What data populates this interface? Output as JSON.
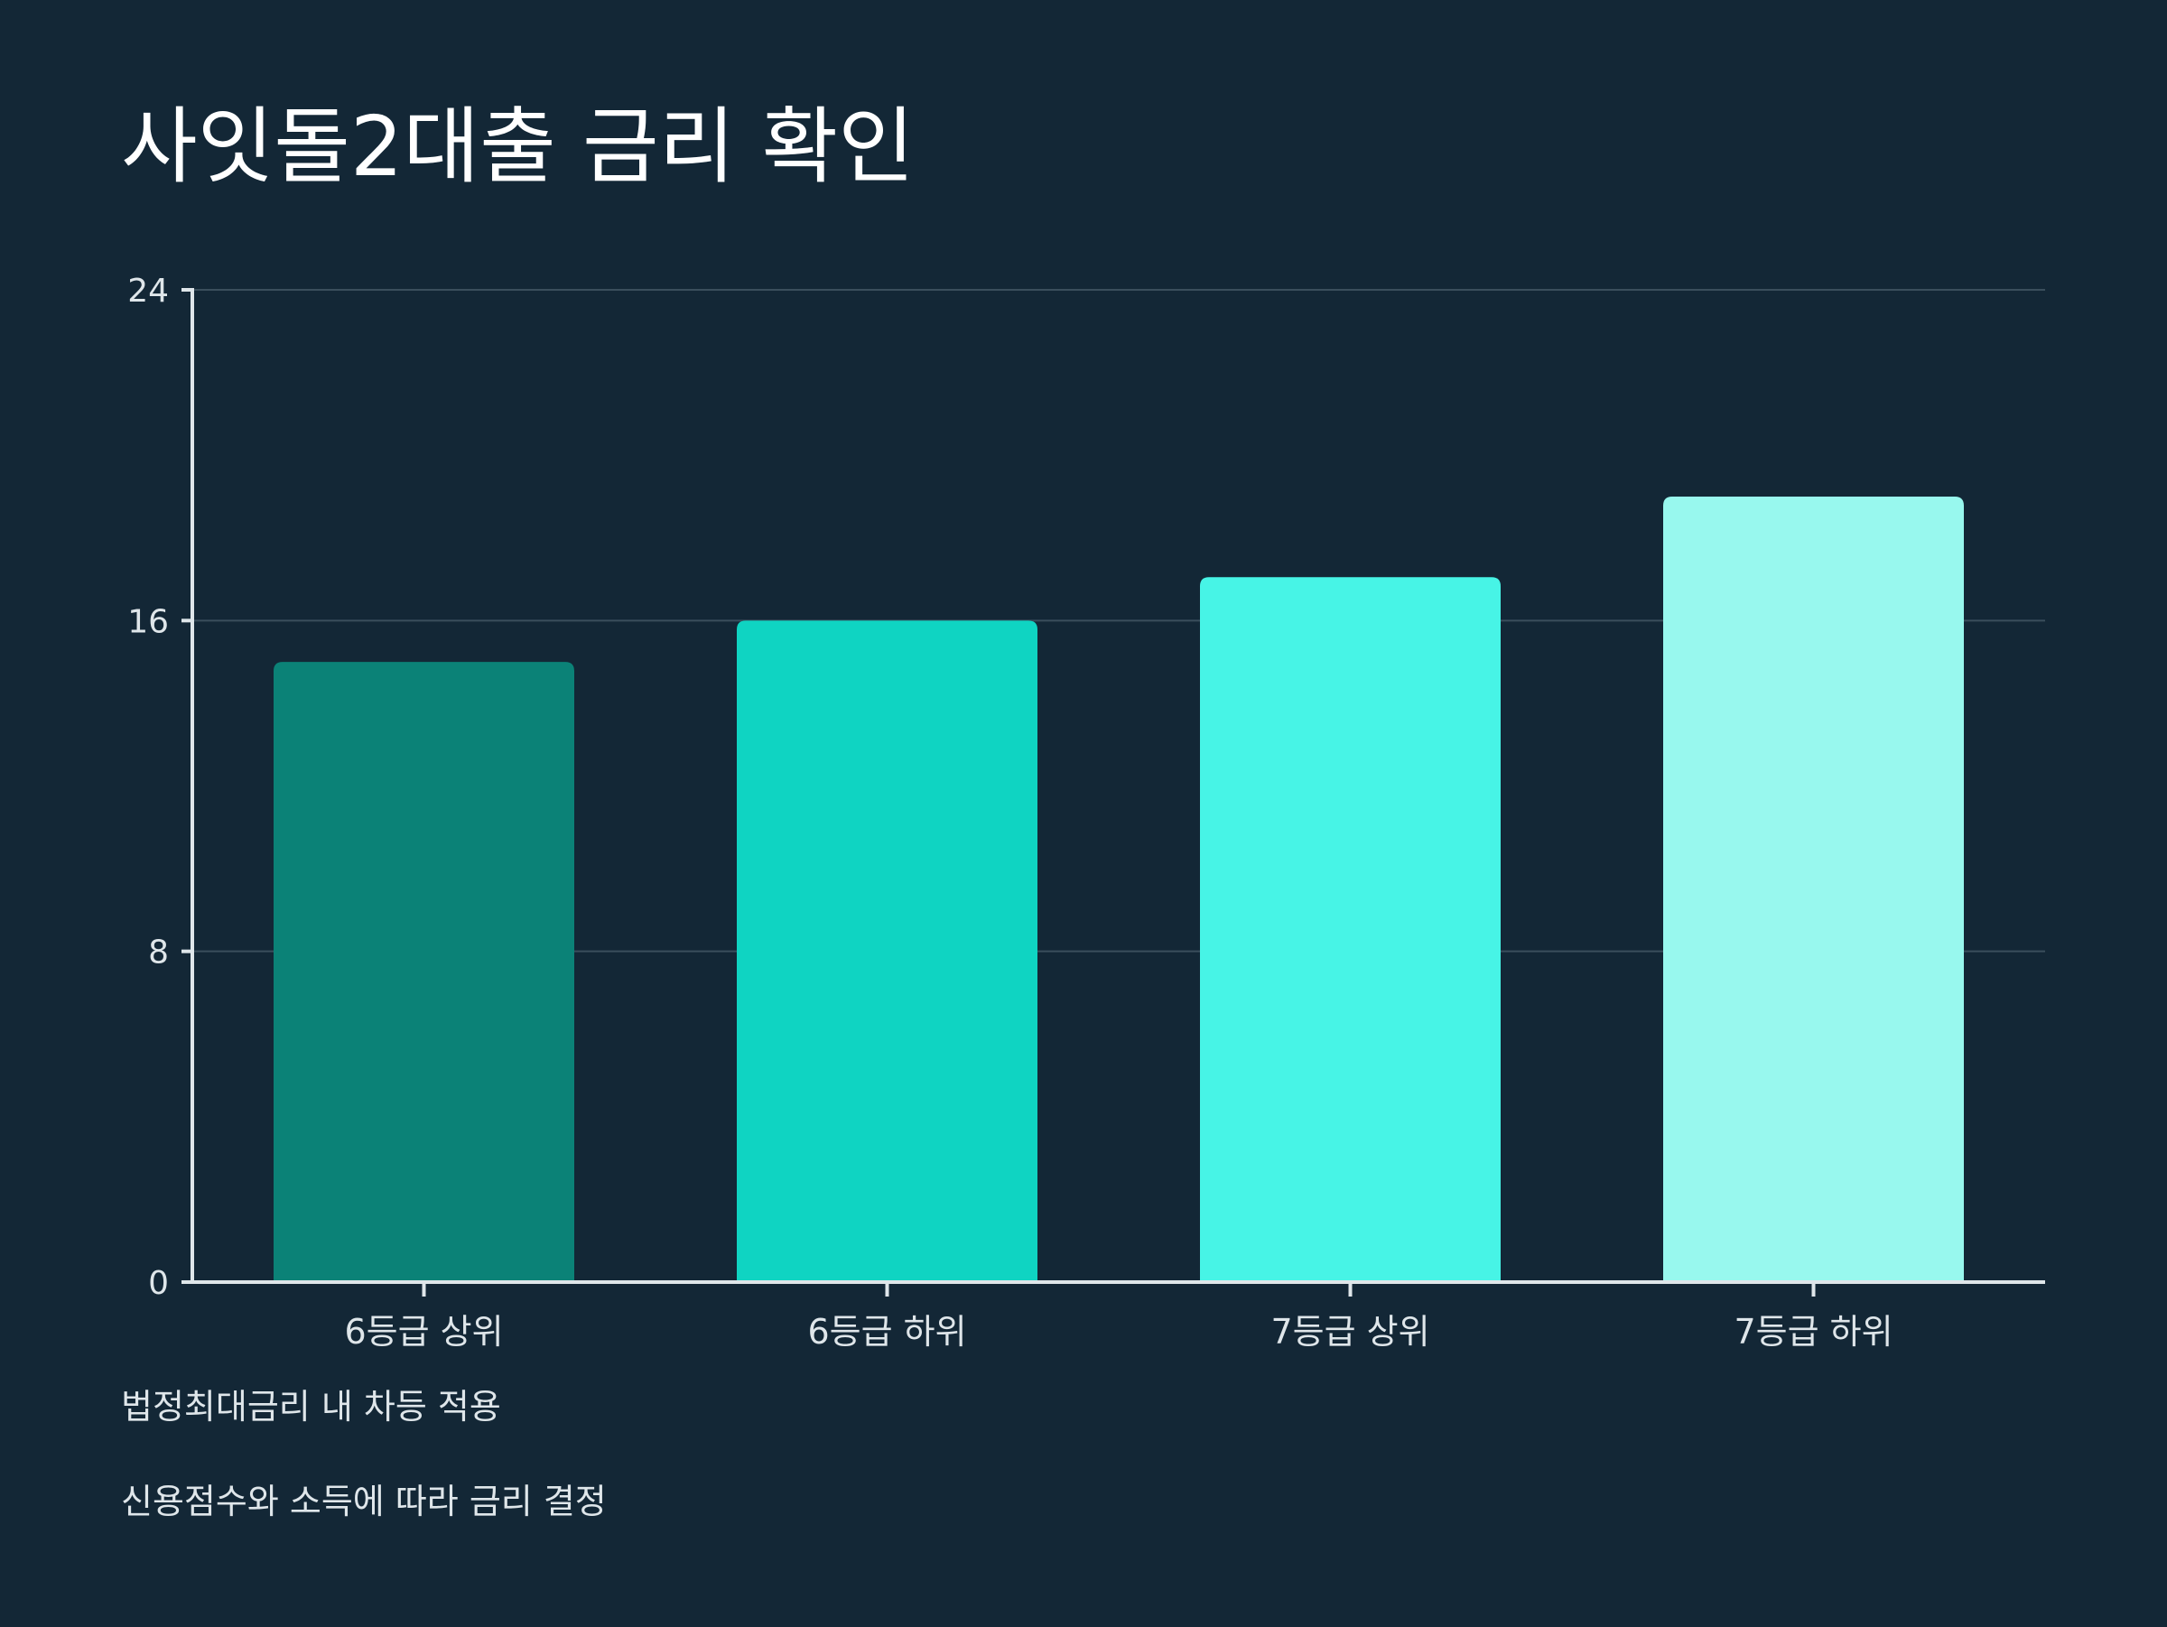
{
  "title": "사잇돌2대출 금리 확인",
  "chart_data": {
    "type": "bar",
    "title": "사잇돌2대출 금리 확인",
    "categories": [
      "6등급 상위",
      "6등급 하위",
      "7등급 상위",
      "7등급 하위"
    ],
    "values": [
      15,
      16,
      17.05,
      19
    ],
    "ylim": [
      0,
      24
    ],
    "yticks": [
      0,
      8,
      16,
      24
    ],
    "xlabel": "",
    "ylabel": "",
    "grid": true,
    "legend": "none",
    "bar_colors": [
      "#0b8277",
      "#0fd4c2",
      "#47f4e6",
      "#98f8ee"
    ],
    "gridline_color": "#3a4e5c",
    "axis_color": "#dfe6ea",
    "background": "#132736"
  },
  "notes": [
    "법정최대금리 내 차등 적용",
    "신용점수와 소득에 따라 금리 결정"
  ]
}
